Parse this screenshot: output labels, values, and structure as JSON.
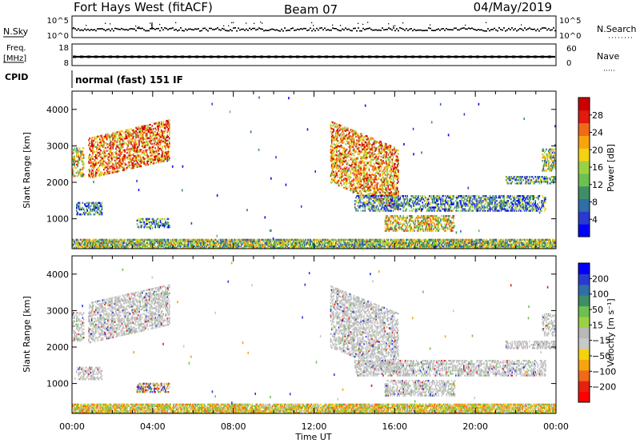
{
  "header": {
    "station": "Fort Hays West (fitACF)",
    "beam": "Beam 07",
    "date": "04/May/2019"
  },
  "strip": {
    "nsky_label": "N.Sky",
    "nsky_ticks": [
      "10^5",
      "10^0"
    ],
    "nsearch_label": "N.Search",
    "nsearch_ticks": [
      "10^5",
      "10^0"
    ],
    "freq_label_1": "Freq.",
    "freq_label_2": "[MHz]",
    "freq_ticks": [
      "18",
      "8"
    ],
    "nave_label": "Nave",
    "nave_ticks": [
      "60",
      "0"
    ],
    "cpid_label": "CPID",
    "mode": "normal (fast) 151 IF"
  },
  "chart_data": [
    {
      "type": "heatmap",
      "name": "power-panel",
      "xlabel": "",
      "ylabel": "Slant Range [km]",
      "xlim": [
        0,
        24
      ],
      "ylim": [
        180,
        4500
      ],
      "y_ticks": [
        1000,
        2000,
        3000,
        4000
      ],
      "colorbar": {
        "label": "Power [dB]",
        "ticks": [
          "28",
          "24",
          "20",
          "16",
          "12",
          "8",
          "4"
        ],
        "colors": [
          "#0000ff",
          "#2a3ad0",
          "#2f6ea8",
          "#3e8f66",
          "#6dc150",
          "#9ad244",
          "#f4d20f",
          "#f8a40d",
          "#f06a1a",
          "#e01b0f",
          "#cc0000"
        ]
      },
      "regions": [
        {
          "t": [
            0.0,
            0.6
          ],
          "r": [
            2150,
            2950
          ],
          "level": 0.55
        },
        {
          "t": [
            0.8,
            4.8
          ],
          "r": [
            2350,
            3450
          ],
          "level": 0.75,
          "slope": 250
        },
        {
          "t": [
            0.2,
            1.5
          ],
          "r": [
            1100,
            1450
          ],
          "level": 0.25
        },
        {
          "t": [
            3.2,
            4.8
          ],
          "r": [
            750,
            1000
          ],
          "level": 0.3
        },
        {
          "t": [
            12.8,
            16.2
          ],
          "r": [
            1600,
            3300
          ],
          "level": 0.7,
          "slope": -380
        },
        {
          "t": [
            14.0,
            23.5
          ],
          "r": [
            1200,
            1650
          ],
          "level": 0.3
        },
        {
          "t": [
            15.5,
            19.0
          ],
          "r": [
            650,
            1100
          ],
          "level": 0.55
        },
        {
          "t": [
            21.5,
            24.0
          ],
          "r": [
            1950,
            2150
          ],
          "level": 0.35
        },
        {
          "t": [
            23.3,
            24.0
          ],
          "r": [
            2300,
            2900
          ],
          "level": 0.45
        },
        {
          "t": [
            0.0,
            24.0
          ],
          "r": [
            180,
            420
          ],
          "level": 0.45
        }
      ]
    },
    {
      "type": "heatmap",
      "name": "velocity-panel",
      "xlabel": "Time UT",
      "ylabel": "Slant Range [km]",
      "xlim": [
        0,
        24
      ],
      "ylim": [
        180,
        4500
      ],
      "x_ticks": [
        "00:00",
        "04:00",
        "08:00",
        "12:00",
        "16:00",
        "20:00",
        "00:00"
      ],
      "y_ticks": [
        1000,
        2000,
        3000,
        4000
      ],
      "colorbar": {
        "label": "Velocity [m s⁻¹]",
        "ticks": [
          "200",
          "100",
          "50",
          "15",
          "−15",
          "−50",
          "−100",
          "−200"
        ],
        "colors": [
          "#ff0000",
          "#e82010",
          "#f06a1a",
          "#f8a40d",
          "#f4d20f",
          "#c8c8c8",
          "#b8b8b8",
          "#9ad244",
          "#6dc150",
          "#3e8f66",
          "#2f6ea8",
          "#2a3ad0",
          "#0000ff"
        ]
      },
      "regions": [
        {
          "t": [
            0.0,
            0.6
          ],
          "r": [
            2150,
            2950
          ],
          "vel": "gray"
        },
        {
          "t": [
            0.8,
            4.8
          ],
          "r": [
            2350,
            3450
          ],
          "vel": "gray",
          "slope": 250
        },
        {
          "t": [
            0.2,
            1.5
          ],
          "r": [
            1100,
            1450
          ],
          "vel": "gray"
        },
        {
          "t": [
            3.2,
            4.8
          ],
          "r": [
            750,
            1000
          ],
          "vel": "mixed"
        },
        {
          "t": [
            12.8,
            16.2
          ],
          "r": [
            1600,
            3300
          ],
          "vel": "gray",
          "slope": -380
        },
        {
          "t": [
            14.0,
            23.5
          ],
          "r": [
            1200,
            1650
          ],
          "vel": "gray"
        },
        {
          "t": [
            15.5,
            19.0
          ],
          "r": [
            650,
            1100
          ],
          "vel": "gray"
        },
        {
          "t": [
            21.5,
            24.0
          ],
          "r": [
            1950,
            2150
          ],
          "vel": "gray"
        },
        {
          "t": [
            23.3,
            24.0
          ],
          "r": [
            2300,
            2900
          ],
          "vel": "gray"
        },
        {
          "t": [
            0.0,
            24.0
          ],
          "r": [
            180,
            420
          ],
          "vel": "ground"
        }
      ]
    }
  ]
}
